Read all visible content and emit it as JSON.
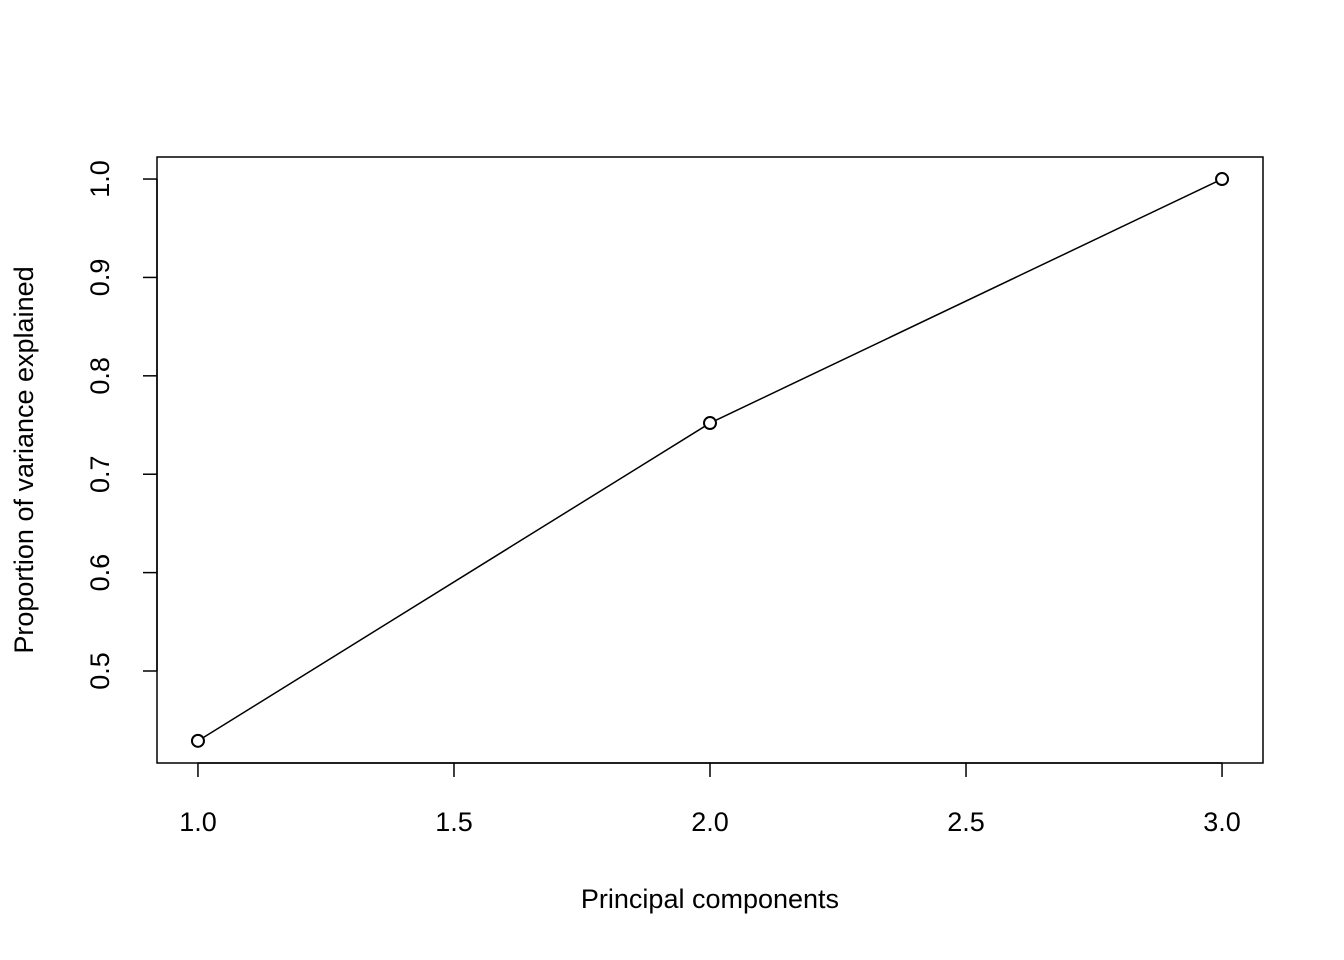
{
  "chart_data": {
    "type": "line",
    "x_label": "Principal components",
    "y_label": "Proportion of variance explained",
    "x": [
      1,
      2,
      3
    ],
    "values": [
      0.429,
      0.752,
      1.0
    ],
    "color": "#000000",
    "markers": true,
    "xlim": [
      0.92,
      3.08
    ],
    "ylim": [
      0.4065,
      1.0224
    ],
    "xticks": [
      {
        "value": 1,
        "label": "1.0"
      },
      1.5,
      {
        "value": 2,
        "label": "2.0"
      },
      2.5,
      {
        "value": 3,
        "label": "3.0"
      }
    ],
    "yticks": [
      0.5,
      0.6,
      0.7,
      0.8,
      0.9,
      {
        "value": 1,
        "label": "1.0"
      }
    ]
  }
}
